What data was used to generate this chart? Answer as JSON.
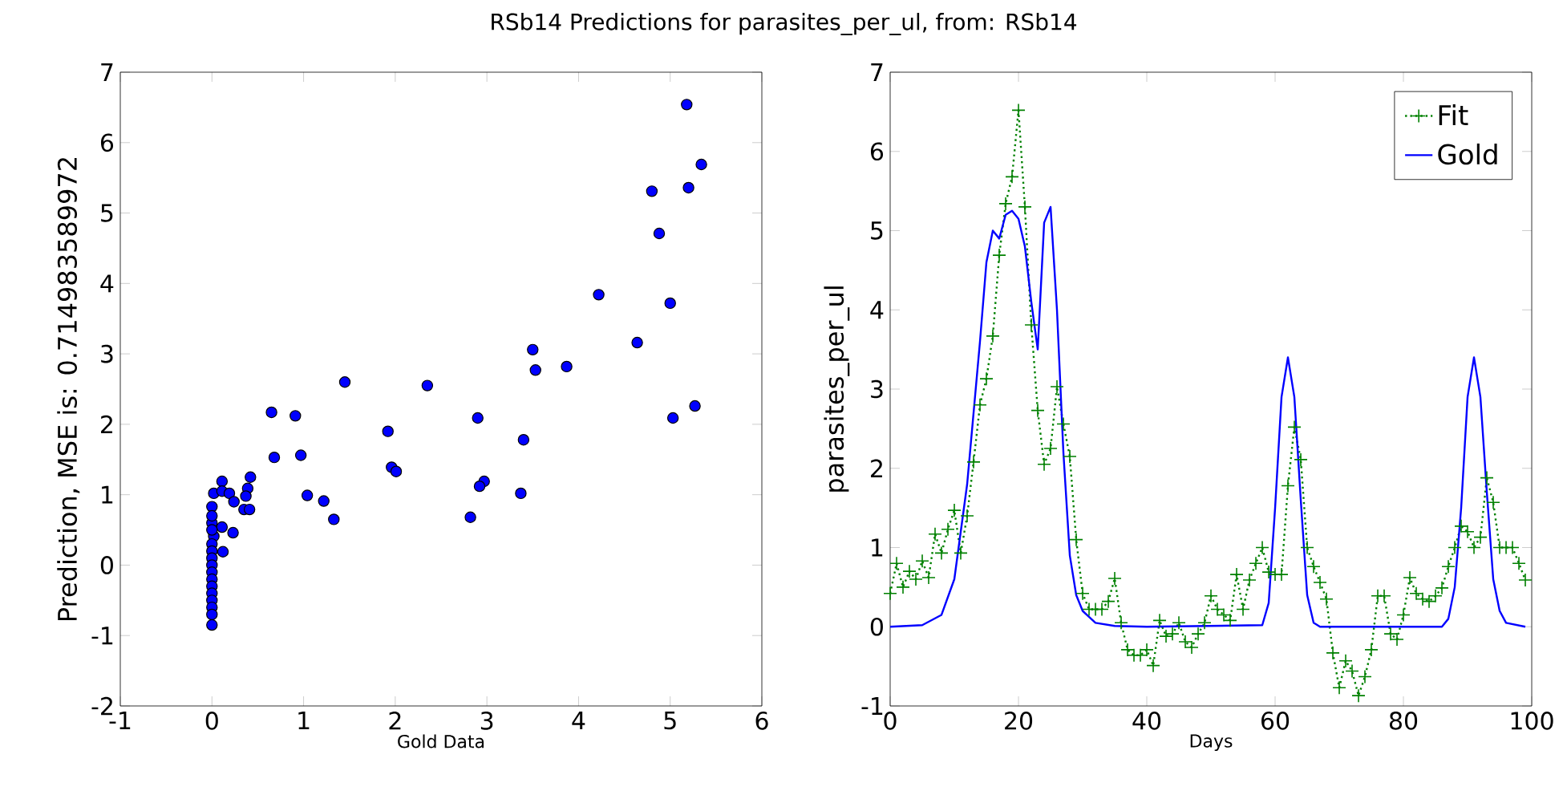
{
  "chart_data": [
    {
      "type": "scatter",
      "title": "RSb14 Predictions for parasites_per_ul, from: RSb14",
      "xlabel": "Gold Data",
      "ylabel": "Prediction, MSE is: 0.714983589972",
      "xlim": [
        -1,
        6
      ],
      "ylim": [
        -2,
        7
      ],
      "xticks": [
        -1,
        0,
        1,
        2,
        3,
        4,
        5,
        6
      ],
      "yticks": [
        -2,
        -1,
        0,
        1,
        2,
        3,
        4,
        5,
        6,
        7
      ],
      "grid": false,
      "legend": false,
      "marker": "circle",
      "series": [
        {
          "color": "#0000ff",
          "x": [
            5.18,
            5.34,
            4.8,
            5.2,
            4.88,
            4.22,
            5.0,
            4.64,
            3.5,
            3.53,
            3.87,
            5.27,
            5.03,
            1.45,
            2.35,
            0.65,
            0.91,
            2.9,
            1.92,
            3.4,
            0.68,
            0.97,
            1.96,
            2.01,
            2.97,
            2.92,
            3.37,
            1.04,
            1.22,
            1.33,
            2.82,
            0.11,
            0.02,
            0.11,
            0.19,
            0.24,
            0.42,
            0.39,
            0.37,
            0.35,
            0.41,
            0.23,
            0.11,
            0.12,
            0.02,
            0,
            0,
            0,
            0,
            0,
            0,
            0,
            0,
            0,
            0,
            0,
            0,
            0,
            0,
            0,
            0
          ],
          "values": [
            6.54,
            5.69,
            5.31,
            5.36,
            4.71,
            3.84,
            3.72,
            3.16,
            3.06,
            2.77,
            2.82,
            2.26,
            2.09,
            2.6,
            2.55,
            2.17,
            2.12,
            2.09,
            1.9,
            1.78,
            1.53,
            1.56,
            1.39,
            1.33,
            1.19,
            1.12,
            1.02,
            0.99,
            0.91,
            0.65,
            0.68,
            1.19,
            1.02,
            1.05,
            1.02,
            0.9,
            1.25,
            1.09,
            0.98,
            0.79,
            0.79,
            0.46,
            0.54,
            0.19,
            0.41,
            0.83,
            0.6,
            0.7,
            0.5,
            0.3,
            0.2,
            0.1,
            0,
            -0.1,
            -0.2,
            -0.3,
            -0.4,
            -0.5,
            -0.6,
            -0.7,
            -0.85
          ]
        }
      ]
    },
    {
      "type": "line",
      "xlabel": "Days",
      "ylabel": "parasites_per_ul",
      "xlim": [
        0,
        100
      ],
      "ylim": [
        -1,
        7
      ],
      "xticks": [
        0,
        20,
        40,
        60,
        80,
        100
      ],
      "yticks": [
        -1,
        0,
        1,
        2,
        3,
        4,
        5,
        6,
        7
      ],
      "grid": false,
      "legend": "top right",
      "series": [
        {
          "name": "Fit",
          "color": "#008000",
          "marker": "cross",
          "line_style": "dotted",
          "x": [
            0,
            1,
            2,
            3,
            4,
            5,
            6,
            7,
            8,
            9,
            10,
            11,
            12,
            13,
            14,
            15,
            16,
            17,
            18,
            19,
            20,
            21,
            22,
            23,
            24,
            25,
            26,
            27,
            28,
            29,
            30,
            31,
            32,
            33,
            34,
            35,
            36,
            37,
            38,
            39,
            40,
            41,
            42,
            43,
            44,
            45,
            46,
            47,
            48,
            49,
            50,
            51,
            52,
            53,
            54,
            55,
            56,
            57,
            58,
            59,
            60,
            61,
            62,
            63,
            64,
            65,
            66,
            67,
            68,
            69,
            70,
            71,
            72,
            73,
            74,
            75,
            76,
            77,
            78,
            79,
            80,
            81,
            82,
            83,
            84,
            85,
            86,
            87,
            88,
            89,
            90,
            91,
            92,
            93,
            94,
            95,
            96,
            97,
            98,
            99
          ],
          "values": [
            0.42,
            0.8,
            0.5,
            0.7,
            0.6,
            0.83,
            0.62,
            1.17,
            0.93,
            1.23,
            1.47,
            0.93,
            1.4,
            2.08,
            2.8,
            3.13,
            3.67,
            4.69,
            5.34,
            5.68,
            6.52,
            5.3,
            3.81,
            2.73,
            2.05,
            2.25,
            3.03,
            2.56,
            2.15,
            1.1,
            0.42,
            0.22,
            0.22,
            0.22,
            0.32,
            0.61,
            0.05,
            -0.29,
            -0.36,
            -0.36,
            -0.29,
            -0.49,
            0.08,
            -0.12,
            -0.09,
            0.05,
            -0.19,
            -0.26,
            -0.09,
            0.05,
            0.39,
            0.22,
            0.15,
            0.08,
            0.66,
            0.22,
            0.59,
            0.8,
            1.0,
            0.69,
            0.66,
            0.66,
            1.78,
            2.52,
            2.11,
            1.0,
            0.76,
            0.56,
            0.35,
            -0.33,
            -0.77,
            -0.43,
            -0.56,
            -0.87,
            -0.63,
            -0.29,
            0.39,
            0.39,
            -0.09,
            -0.16,
            0.15,
            0.62,
            0.42,
            0.35,
            0.32,
            0.39,
            0.49,
            0.76,
            1.0,
            1.27,
            1.2,
            1.0,
            1.13,
            1.88,
            1.57,
            1.0,
            1.0,
            1.0,
            0.8,
            0.59
          ]
        },
        {
          "name": "Gold",
          "color": "#0000ff",
          "marker": "none",
          "line_style": "solid",
          "x": [
            0,
            5,
            8,
            10,
            12,
            14,
            15,
            16,
            17,
            18,
            19,
            20,
            21,
            22,
            23,
            24,
            25,
            26,
            27,
            28,
            29,
            30,
            32,
            35,
            40,
            58,
            59,
            60,
            61,
            62,
            63,
            64,
            65,
            66,
            67,
            86,
            87,
            88,
            89,
            90,
            91,
            92,
            93,
            94,
            95,
            96,
            99
          ],
          "values": [
            0,
            0.02,
            0.15,
            0.6,
            1.8,
            3.6,
            4.6,
            5.0,
            4.9,
            5.2,
            5.25,
            5.15,
            4.8,
            4.1,
            3.5,
            5.1,
            5.3,
            4.0,
            2.2,
            0.9,
            0.4,
            0.2,
            0.05,
            0.01,
            0,
            0.02,
            0.3,
            1.5,
            2.9,
            3.4,
            2.9,
            1.6,
            0.4,
            0.05,
            0,
            0,
            0.1,
            0.5,
            1.5,
            2.9,
            3.4,
            2.9,
            1.7,
            0.6,
            0.2,
            0.05,
            0
          ]
        }
      ]
    }
  ]
}
